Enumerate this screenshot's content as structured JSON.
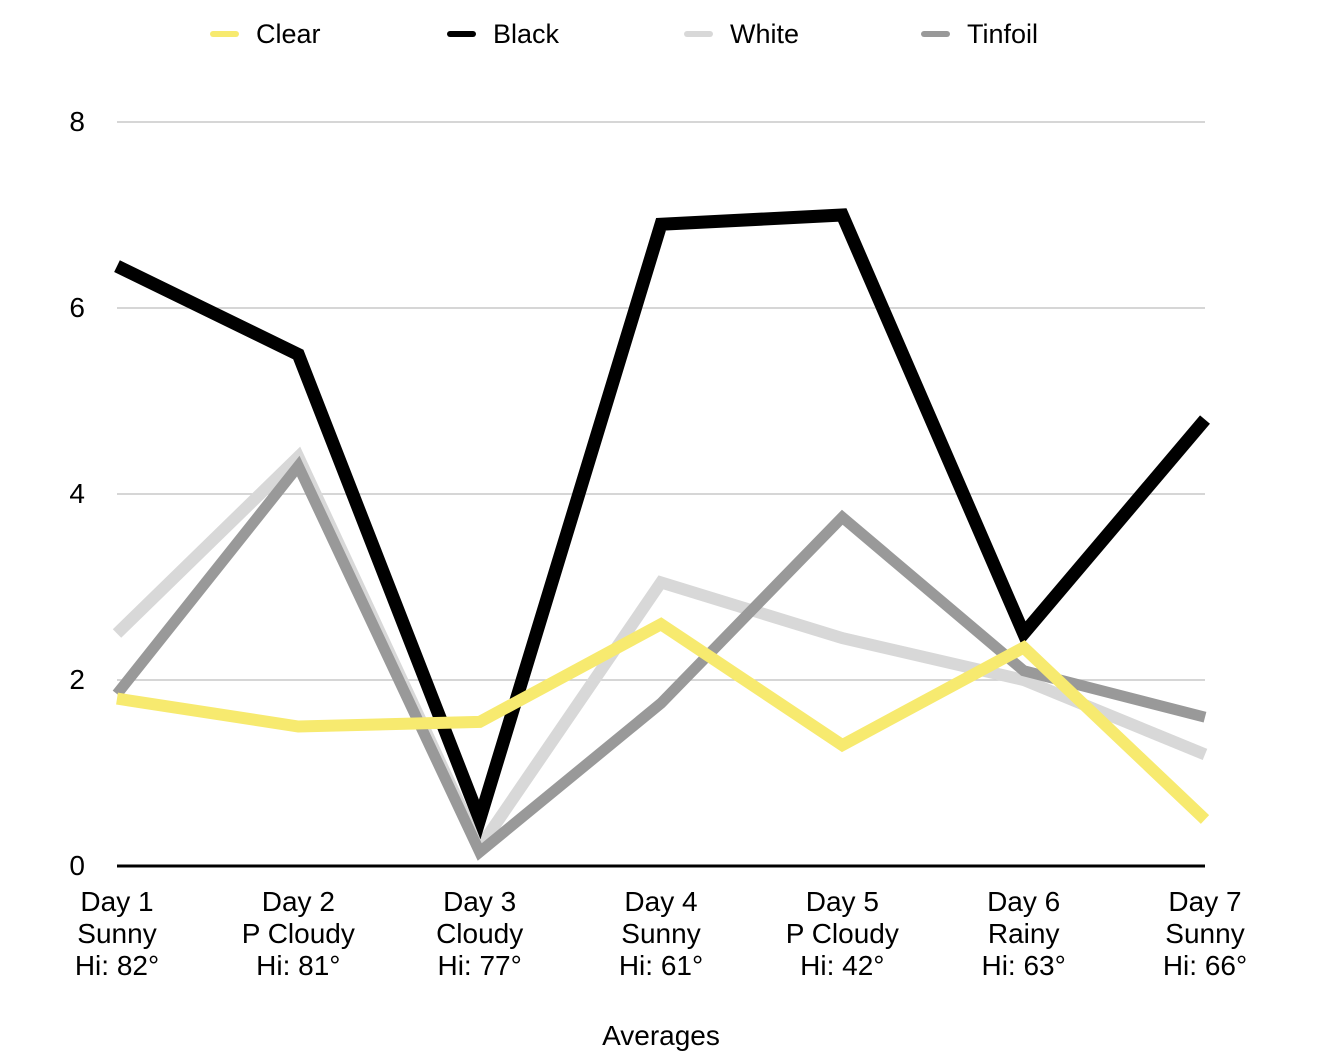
{
  "chart_data": {
    "type": "line",
    "title": "",
    "xlabel": "Averages",
    "ylabel": "",
    "ylim": [
      0,
      8
    ],
    "yticks": [
      0,
      2,
      4,
      6,
      8
    ],
    "grid": "horizontal",
    "grid_color": "#C9C9C9",
    "axis_color": "#000000",
    "legend_position": "top",
    "categories": [
      {
        "day": "Day 1",
        "condition": "Sunny",
        "hi": "Hi: 82°"
      },
      {
        "day": "Day 2",
        "condition": "P Cloudy",
        "hi": "Hi: 81°"
      },
      {
        "day": "Day 3",
        "condition": "Cloudy",
        "hi": "Hi: 77°"
      },
      {
        "day": "Day 4",
        "condition": "Sunny",
        "hi": "Hi: 61°"
      },
      {
        "day": "Day 5",
        "condition": "P Cloudy",
        "hi": "Hi: 42°"
      },
      {
        "day": "Day 6",
        "condition": "Rainy",
        "hi": "Hi: 63°"
      },
      {
        "day": "Day 7",
        "condition": "Sunny",
        "hi": "Hi: 66°"
      }
    ],
    "series": [
      {
        "name": "Clear",
        "color": "#F7EA6F",
        "values": [
          1.8,
          1.5,
          1.55,
          2.6,
          1.3,
          2.35,
          0.5
        ]
      },
      {
        "name": "Black",
        "color": "#000000",
        "values": [
          6.45,
          5.5,
          0.5,
          6.9,
          7.0,
          2.5,
          4.8
        ]
      },
      {
        "name": "White",
        "color": "#D8D8D8",
        "values": [
          2.5,
          4.4,
          0.2,
          3.05,
          2.45,
          2.0,
          1.2
        ]
      },
      {
        "name": "Tinfoil",
        "color": "#999999",
        "values": [
          1.85,
          4.3,
          0.15,
          1.75,
          3.75,
          2.1,
          1.6
        ]
      }
    ],
    "draw_order": [
      "White",
      "Tinfoil",
      "Black",
      "Clear"
    ]
  }
}
